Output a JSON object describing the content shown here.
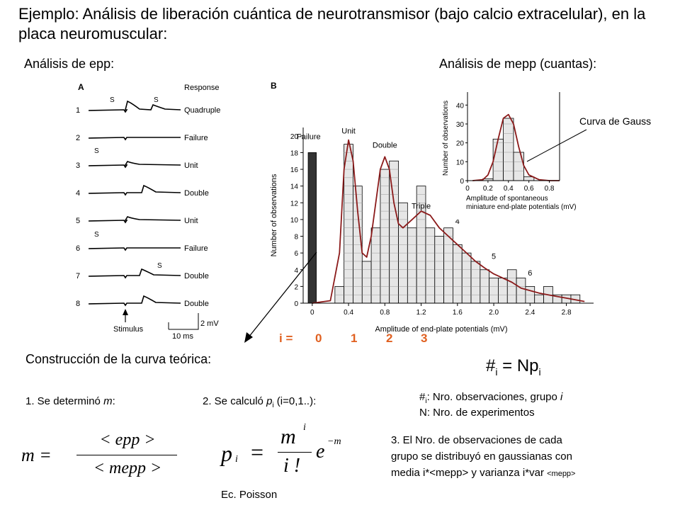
{
  "title": "Ejemplo: Análisis de liberación cuántica de neurotransmisor (bajo calcio extracelular), en la placa neuromuscular:",
  "section_epp": "Análisis de epp:",
  "section_mepp": "Análisis de mepp (cuantas):",
  "trace_panel": {
    "panel_label": "A",
    "response_header": "Response",
    "stim_marks": [
      "S",
      "S",
      "S",
      "S",
      "S"
    ],
    "rows": [
      {
        "num": "1",
        "response": "Quadruple"
      },
      {
        "num": "2",
        "response": "Failure"
      },
      {
        "num": "3",
        "response": "Unit"
      },
      {
        "num": "4",
        "response": "Double"
      },
      {
        "num": "5",
        "response": "Unit"
      },
      {
        "num": "6",
        "response": "Failure"
      },
      {
        "num": "7",
        "response": "Double"
      },
      {
        "num": "8",
        "response": "Double"
      }
    ],
    "stimulus_label": "Stimulus",
    "scale_v": "2 mV",
    "scale_t": "10 ms"
  },
  "chart_data": [
    {
      "type": "bar",
      "panel_label": "B",
      "xlabel": "Amplitude of end-plate potentials (mV)",
      "ylabel": "Number of observations",
      "x_ticks": [
        "0",
        "0.4",
        "0.8",
        "1.2",
        "1.6",
        "2.0",
        "2.4",
        "2.8"
      ],
      "y_ticks": [
        "0",
        "2",
        "4",
        "6",
        "8",
        "10",
        "12",
        "14",
        "16",
        "18",
        "20"
      ],
      "xlim": [
        -0.1,
        3.1
      ],
      "ylim": [
        0,
        21
      ],
      "bin_width": 0.1,
      "failure_bar": {
        "x": 0,
        "value": 18,
        "label": "Failure"
      },
      "bins_x": [
        0.3,
        0.4,
        0.5,
        0.6,
        0.7,
        0.8,
        0.9,
        1.0,
        1.1,
        1.2,
        1.3,
        1.4,
        1.5,
        1.6,
        1.7,
        1.8,
        1.9,
        2.0,
        2.1,
        2.2,
        2.3,
        2.4,
        2.5,
        2.6,
        2.7,
        2.8,
        2.9
      ],
      "bins_values": [
        2,
        19,
        14,
        5,
        9,
        16,
        17,
        12,
        9,
        14,
        9,
        8,
        9,
        7,
        6,
        5,
        4,
        3,
        3,
        4,
        3,
        2,
        1,
        2,
        1,
        1,
        1
      ],
      "curve": {
        "x": [
          0.0,
          0.2,
          0.3,
          0.35,
          0.4,
          0.45,
          0.5,
          0.55,
          0.6,
          0.65,
          0.7,
          0.75,
          0.8,
          0.85,
          0.9,
          0.95,
          1.0,
          1.1,
          1.2,
          1.3,
          1.4,
          1.5,
          1.6,
          1.7,
          1.8,
          1.9,
          2.0,
          2.1,
          2.2,
          2.3,
          2.4,
          2.5,
          2.6,
          2.7,
          2.8,
          2.9,
          3.0
        ],
        "y": [
          0,
          0.3,
          6,
          16,
          19.5,
          17,
          11,
          6,
          5.5,
          8,
          12,
          16,
          17.5,
          16,
          12,
          9.5,
          9,
          10,
          11,
          10.5,
          9,
          8,
          7,
          6,
          5,
          4.2,
          3.5,
          3,
          2.5,
          1.8,
          1.5,
          1.2,
          1,
          0.8,
          0.6,
          0.4,
          0.2
        ]
      },
      "annotations": [
        {
          "text": "Unit",
          "x": 0.4,
          "y": 20.3
        },
        {
          "text": "Double",
          "x": 0.8,
          "y": 18.6
        },
        {
          "text": "Triple",
          "x": 1.2,
          "y": 11.3
        },
        {
          "text": "4",
          "x": 1.6,
          "y": 9.5
        },
        {
          "text": "5",
          "x": 2.0,
          "y": 5.3
        },
        {
          "text": "6",
          "x": 2.4,
          "y": 3.3
        }
      ]
    },
    {
      "type": "bar",
      "xlabel": "Amplitude of spontaneous miniature end-plate potentials (mV)",
      "ylabel": "Number of observations",
      "x_ticks": [
        "0",
        "0.2",
        "0.4",
        "0.6",
        "0.8"
      ],
      "y_ticks": [
        "0",
        "10",
        "20",
        "30",
        "40"
      ],
      "xlim": [
        0,
        0.9
      ],
      "ylim": [
        0,
        45
      ],
      "bin_width": 0.1,
      "bins_x": [
        0.2,
        0.3,
        0.4,
        0.5,
        0.6
      ],
      "bins_values": [
        1,
        22,
        33,
        15,
        2
      ],
      "curve": {
        "x": [
          0.05,
          0.15,
          0.2,
          0.25,
          0.3,
          0.35,
          0.4,
          0.45,
          0.5,
          0.55,
          0.6,
          0.7,
          0.8,
          0.9
        ],
        "y": [
          0,
          0.5,
          3,
          10,
          22,
          33,
          35,
          30,
          18,
          8,
          3,
          0.5,
          0,
          0
        ]
      },
      "annotation": "Curva de Gauss"
    }
  ],
  "i_row": {
    "label": "i =",
    "values": [
      "0",
      "1",
      "2",
      "3"
    ]
  },
  "construction_title": "Construcción de la curva teórica:",
  "poisson_head": {
    "hash": "#",
    "sub": "i",
    "eq": "= Np",
    "sub2": "i"
  },
  "step1": {
    "text": "1. Se determinó ",
    "var": "m",
    "colon": ":"
  },
  "step2": {
    "text": "2. Se calculó ",
    "var": "p",
    "sub": "i",
    "rest": " (i=0,1..):"
  },
  "def1": {
    "hash": "#",
    "sub": "i",
    "text": ": Nro. observaciones, grupo ",
    "var": "i"
  },
  "def2": "N: Nro. de experimentos",
  "step3_lines": [
    "3. El Nro. de observaciones de cada",
    "grupo se distribuyó en gaussianas con"
  ],
  "step3_last": {
    "text": "media i*<mepp> y varianza i*var ",
    "small": "<mepp>"
  },
  "formula_m": {
    "lhs": "m =",
    "num": "< epp >",
    "den": "< mepp >"
  },
  "formula_p": {
    "p": "p",
    "sub": "i",
    "eq": "=",
    "num": "m",
    "num_sup": "i",
    "den": "i !",
    "exp": "e",
    "exp_sup": "−m"
  },
  "poisson_label": "Ec. Poisson"
}
